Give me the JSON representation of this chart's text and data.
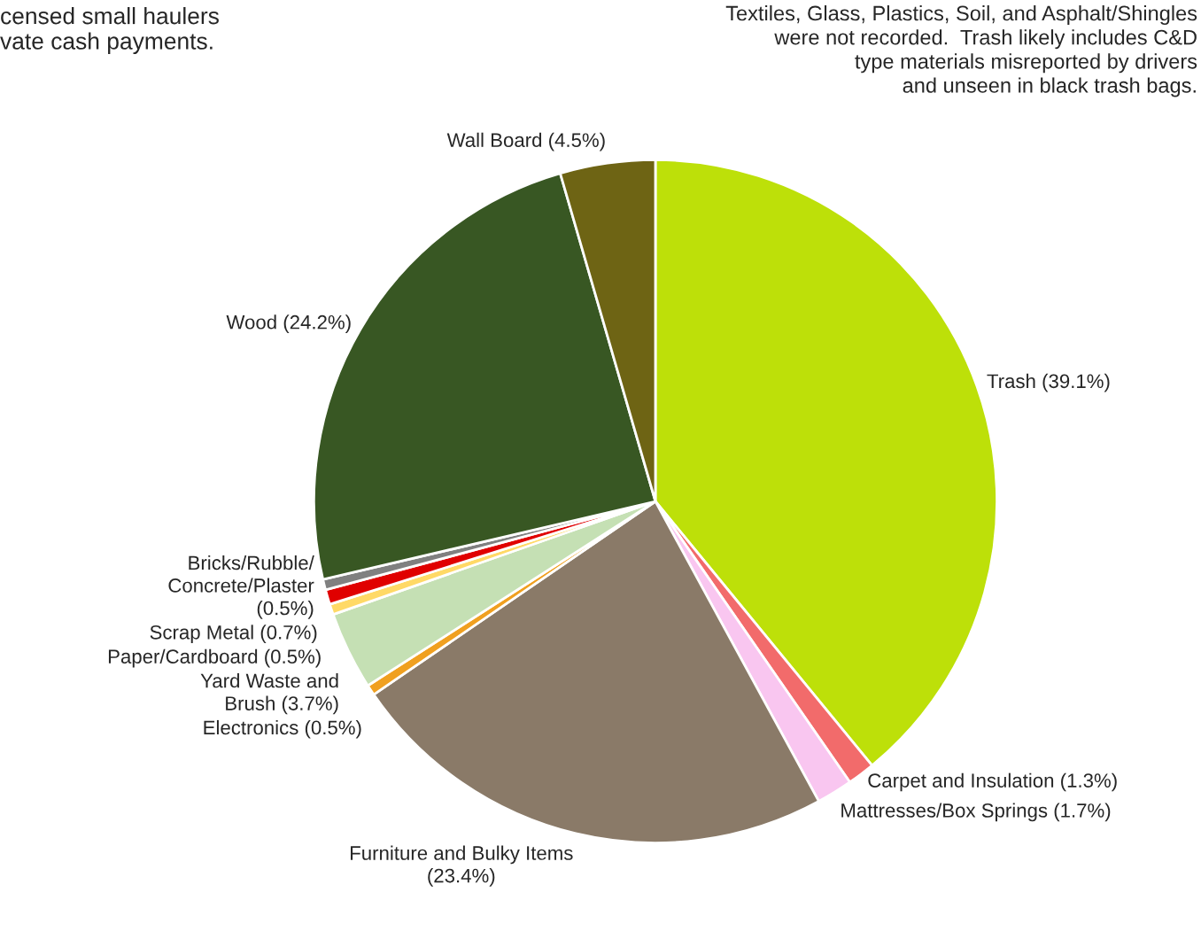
{
  "chart_data": {
    "type": "pie",
    "categories": [
      "Trash (39.1%)",
      "Carpet and Insulation (1.3%)",
      "Mattresses/Box Springs (1.7%)",
      "Furniture and Bulky Items\n(23.4%)",
      "Electronics (0.5%)",
      "Yard Waste and\nBrush (3.7%)",
      "Paper/Cardboard (0.5%)",
      "Scrap Metal (0.7%)",
      "Bricks/Rubble/\nConcrete/Plaster\n(0.5%)",
      "Wood (24.2%)",
      "Wall Board (4.5%)"
    ],
    "values": [
      39.1,
      1.3,
      1.7,
      23.4,
      0.5,
      3.7,
      0.5,
      0.7,
      0.5,
      24.2,
      4.5
    ],
    "colors": [
      "#bde009",
      "#f26b6b",
      "#f9c6f0",
      "#8a7a68",
      "#f0a020",
      "#c5e0b4",
      "#ffd966",
      "#e00000",
      "#808080",
      "#385723",
      "#6e6414"
    ],
    "annotations": [
      "censed small haulers\nvate cash payments.",
      "Textiles, Glass, Plastics, Soil, and Asphalt/Shingles\nwere not recorded.  Trash likely includes C&D\ntype materials misreported by drivers\nand unseen in black trash bags."
    ]
  }
}
